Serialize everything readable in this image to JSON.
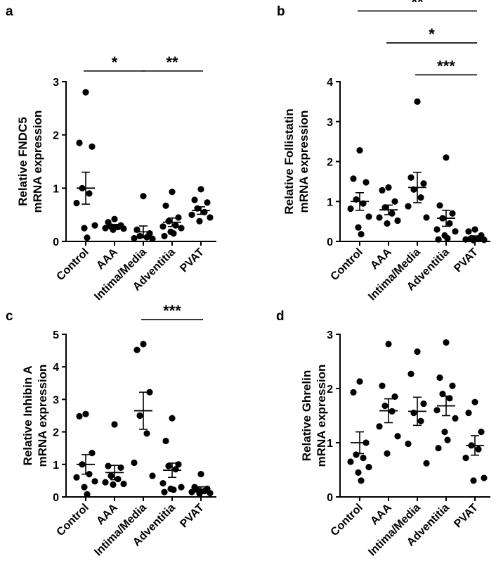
{
  "chart_data": [
    {
      "type": "scatter",
      "panel": "a",
      "ylabel": [
        "Relative FNDC5",
        "mRNA expression"
      ],
      "categories": [
        "Control",
        "AAA",
        "Intima/Media",
        "Adventitia",
        "PVAT"
      ],
      "ylim": [
        0,
        3
      ],
      "yticks": [
        0,
        1,
        2,
        3
      ],
      "series": [
        {
          "name": "Control",
          "points": [
            2.8,
            1.85,
            1.78,
            1.0,
            0.9,
            0.72,
            0.3,
            0.25,
            0.07
          ],
          "mean": 1.0,
          "sem": 0.3
        },
        {
          "name": "AAA",
          "points": [
            0.42,
            0.36,
            0.3,
            0.28,
            0.27,
            0.25,
            0.24,
            0.22
          ],
          "mean": 0.29,
          "sem": 0.03
        },
        {
          "name": "Intima/Media",
          "points": [
            0.85,
            0.22,
            0.15,
            0.1,
            0.08,
            0.06,
            0.05
          ],
          "mean": 0.18,
          "sem": 0.11
        },
        {
          "name": "Adventitia",
          "points": [
            0.93,
            0.67,
            0.45,
            0.38,
            0.3,
            0.28,
            0.25,
            0.18,
            0.15,
            0.1
          ],
          "mean": 0.36,
          "sem": 0.08
        },
        {
          "name": "PVAT",
          "points": [
            0.98,
            0.78,
            0.73,
            0.62,
            0.55,
            0.5,
            0.45,
            0.38
          ],
          "mean": 0.58,
          "sem": 0.07
        }
      ],
      "significance": [
        {
          "from": 0,
          "to": 2,
          "label": "*",
          "y": 3.2
        },
        {
          "from": 2,
          "to": 4,
          "label": "**",
          "y": 3.2
        }
      ]
    },
    {
      "type": "scatter",
      "panel": "b",
      "ylabel": [
        "Relative Follistatin",
        "mRNA expression"
      ],
      "categories": [
        "Control",
        "AAA",
        "Intima/Media",
        "Adventitia",
        "PVAT"
      ],
      "ylim": [
        0,
        4
      ],
      "yticks": [
        0,
        1,
        2,
        3,
        4
      ],
      "series": [
        {
          "name": "Control",
          "points": [
            2.28,
            1.57,
            1.48,
            1.05,
            0.95,
            0.82,
            0.62,
            0.35,
            0.18
          ],
          "mean": 1.0,
          "sem": 0.22
        },
        {
          "name": "AAA",
          "points": [
            1.35,
            1.28,
            1.0,
            0.85,
            0.7,
            0.6,
            0.52,
            0.45
          ],
          "mean": 0.79,
          "sem": 0.12
        },
        {
          "name": "Intima/Media",
          "points": [
            3.5,
            1.6,
            1.45,
            1.3,
            1.1,
            0.88,
            0.6
          ],
          "mean": 1.35,
          "sem": 0.38
        },
        {
          "name": "Adventitia",
          "points": [
            2.1,
            0.9,
            0.7,
            0.58,
            0.45,
            0.3,
            0.25,
            0.15,
            0.08,
            0.05
          ],
          "mean": 0.58,
          "sem": 0.2
        },
        {
          "name": "PVAT",
          "points": [
            0.3,
            0.25,
            0.15,
            0.08,
            0.06,
            0.05,
            0.04,
            0.03
          ],
          "mean": 0.1,
          "sem": 0.04
        }
      ],
      "significance": [
        {
          "from": 0,
          "to": 4,
          "label": "**",
          "y": 5.77
        },
        {
          "from": 1,
          "to": 4,
          "label": "*",
          "y": 4.97
        },
        {
          "from": 2,
          "to": 4,
          "label": "***",
          "y": 4.17
        }
      ]
    },
    {
      "type": "scatter",
      "panel": "c",
      "ylabel": [
        "Relative Inhibin A",
        "mRNA expression"
      ],
      "categories": [
        "Control",
        "AAA",
        "Intima/Media",
        "Adventitia",
        "PVAT"
      ],
      "ylim": [
        0,
        5
      ],
      "yticks": [
        0,
        1,
        2,
        3,
        4,
        5
      ],
      "series": [
        {
          "name": "Control",
          "points": [
            2.55,
            2.48,
            1.35,
            1.0,
            0.7,
            0.6,
            0.48,
            0.3,
            0.08
          ],
          "mean": 1.0,
          "sem": 0.3
        },
        {
          "name": "AAA",
          "points": [
            2.23,
            0.95,
            0.9,
            0.65,
            0.55,
            0.45,
            0.4,
            0.38
          ],
          "mean": 0.75,
          "sem": 0.22
        },
        {
          "name": "Intima/Media",
          "points": [
            4.7,
            4.52,
            3.22,
            2.5,
            1.95,
            1.05,
            0.65
          ],
          "mean": 2.65,
          "sem": 0.57
        },
        {
          "name": "Adventitia",
          "points": [
            2.42,
            1.72,
            1.0,
            0.95,
            0.85,
            0.42,
            0.3,
            0.25,
            0.22,
            0.15
          ],
          "mean": 0.82,
          "sem": 0.22
        },
        {
          "name": "PVAT",
          "points": [
            0.7,
            0.3,
            0.25,
            0.22,
            0.18,
            0.15,
            0.12,
            0.1
          ],
          "mean": 0.23,
          "sem": 0.08
        }
      ],
      "significance": [
        {
          "from": 2,
          "to": 4,
          "label": "***",
          "y": 5.45
        }
      ]
    },
    {
      "type": "scatter",
      "panel": "d",
      "ylabel": [
        "Relative Ghrelin",
        "mRNA expression"
      ],
      "categories": [
        "Control",
        "AAA",
        "Intima/Media",
        "Adventitia",
        "PVAT"
      ],
      "ylim": [
        0,
        3
      ],
      "yticks": [
        0,
        1,
        2,
        3
      ],
      "series": [
        {
          "name": "Control",
          "points": [
            2.13,
            1.93,
            1.0,
            0.78,
            0.72,
            0.65,
            0.55,
            0.45,
            0.3
          ],
          "mean": 1.0,
          "sem": 0.2
        },
        {
          "name": "AAA",
          "points": [
            2.82,
            2.05,
            1.85,
            1.68,
            1.58,
            1.3,
            1.12,
            0.8
          ],
          "mean": 1.59,
          "sem": 0.22
        },
        {
          "name": "Intima/Media",
          "points": [
            2.68,
            2.27,
            1.72,
            1.55,
            1.4,
            0.98,
            0.62
          ],
          "mean": 1.58,
          "sem": 0.26
        },
        {
          "name": "Adventitia",
          "points": [
            2.85,
            2.2,
            2.05,
            1.9,
            1.82,
            1.6,
            1.45,
            1.2,
            1.05,
            0.9
          ],
          "mean": 1.68,
          "sem": 0.18
        },
        {
          "name": "PVAT",
          "points": [
            1.75,
            1.55,
            1.2,
            0.95,
            0.88,
            0.72,
            0.35,
            0.3
          ],
          "mean": 0.95,
          "sem": 0.18
        }
      ],
      "significance": []
    }
  ]
}
